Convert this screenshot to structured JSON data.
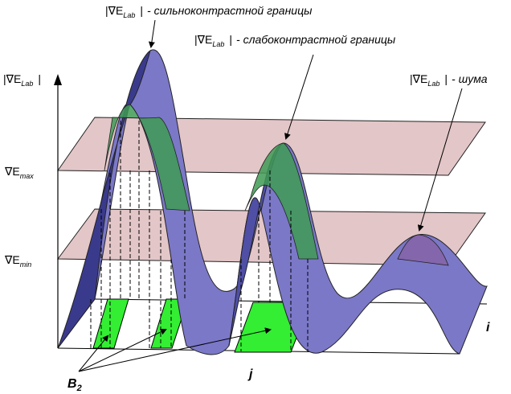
{
  "annotations": {
    "strong": {
      "grad": "|∇E",
      "sub": "Lab",
      "bar": "|",
      "text": "- сильноконтрастной границы"
    },
    "weak": {
      "grad": "|∇E",
      "sub": "Lab",
      "bar": "|",
      "text": "- слабоконтрастной границы"
    },
    "noise": {
      "grad": "|∇E",
      "sub": "Lab",
      "bar": "|",
      "text": "- шума"
    }
  },
  "y_axis": {
    "label": {
      "grad": "|∇E",
      "sub": "Lab",
      "bar": "|"
    },
    "emax": {
      "grad": "∇E",
      "sub": "max"
    },
    "emin": {
      "grad": "∇E",
      "sub": "min"
    }
  },
  "axis_letters": {
    "i": "i",
    "j": "j",
    "b": "B",
    "b_sub": "2"
  },
  "colors": {
    "band": "#d9b3b6",
    "surface": "#7b78c8",
    "surface_dark": "#3a3a8c",
    "surface_green": "#3f9a55",
    "region_green": "#33ee33"
  }
}
